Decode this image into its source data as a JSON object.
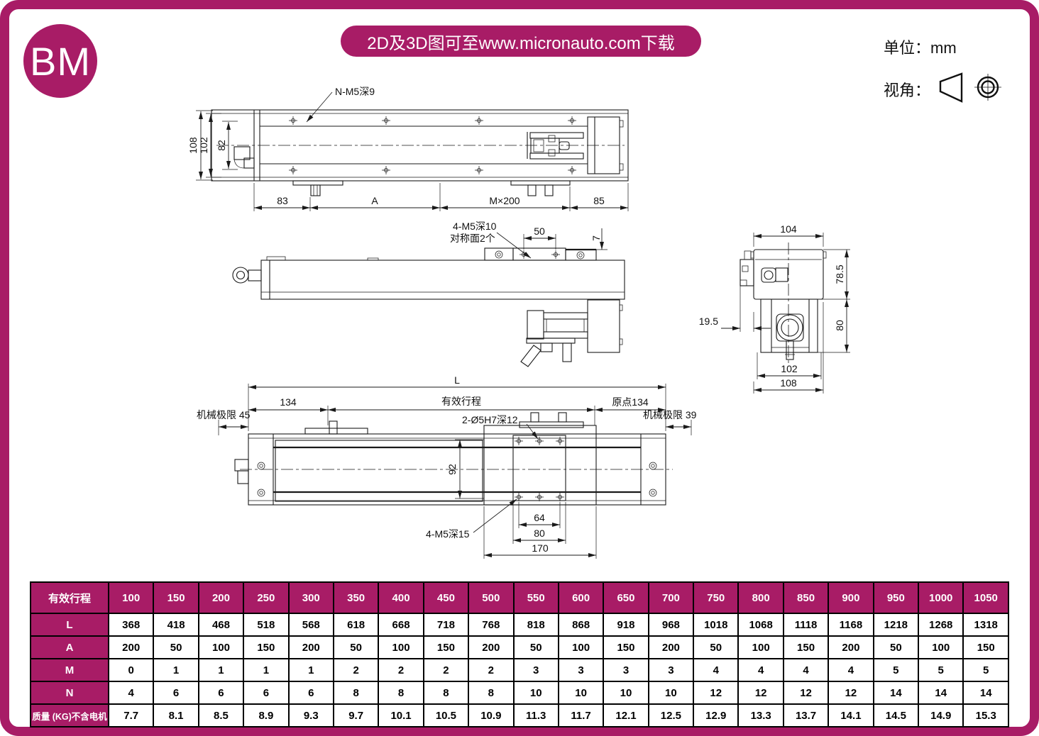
{
  "page": {
    "logo": "BM",
    "banner": "2D及3D图可至www.micronauto.com下载",
    "unit": "单位：mm",
    "view": "视角：",
    "accent": "#a81c66"
  },
  "d1": {
    "note": "N-M5深9",
    "h108": "108",
    "h102": "102",
    "h82": "82",
    "w83": "83",
    "wA": "A",
    "wM": "M×200",
    "w85": "85"
  },
  "d2": {
    "note1": "4-M5深10",
    "note2": "对称面2个",
    "w50": "50",
    "h7": "7"
  },
  "d3": {
    "L": "L",
    "w134": "134",
    "stroke": "有效行程",
    "origin": "原点134",
    "limL": "机械极限 45",
    "limR": "机械极限 39",
    "hole": "2-Ø5H7深12",
    "h92": "92",
    "thread": "4-M5深15",
    "w64": "64",
    "w80": "80",
    "w170": "170"
  },
  "d4": {
    "w104": "104",
    "h78": "78.5",
    "h80": "80",
    "w19": "19.5",
    "w102": "102",
    "w108": "108"
  },
  "table": {
    "header": "有效行程",
    "strokes": [
      "100",
      "150",
      "200",
      "250",
      "300",
      "350",
      "400",
      "450",
      "500",
      "550",
      "600",
      "650",
      "700",
      "750",
      "800",
      "850",
      "900",
      "950",
      "1000",
      "1050"
    ],
    "rows": [
      {
        "label": "L",
        "values": [
          "368",
          "418",
          "468",
          "518",
          "568",
          "618",
          "668",
          "718",
          "768",
          "818",
          "868",
          "918",
          "968",
          "1018",
          "1068",
          "1118",
          "1168",
          "1218",
          "1268",
          "1318"
        ]
      },
      {
        "label": "A",
        "values": [
          "200",
          "50",
          "100",
          "150",
          "200",
          "50",
          "100",
          "150",
          "200",
          "50",
          "100",
          "150",
          "200",
          "50",
          "100",
          "150",
          "200",
          "50",
          "100",
          "150"
        ]
      },
      {
        "label": "M",
        "values": [
          "0",
          "1",
          "1",
          "1",
          "1",
          "2",
          "2",
          "2",
          "2",
          "3",
          "3",
          "3",
          "3",
          "4",
          "4",
          "4",
          "4",
          "5",
          "5",
          "5"
        ]
      },
      {
        "label": "N",
        "values": [
          "4",
          "6",
          "6",
          "6",
          "6",
          "8",
          "8",
          "8",
          "8",
          "10",
          "10",
          "10",
          "10",
          "12",
          "12",
          "12",
          "12",
          "14",
          "14",
          "14"
        ]
      },
      {
        "label": "质量 (KG)不含电机",
        "values": [
          "7.7",
          "8.1",
          "8.5",
          "8.9",
          "9.3",
          "9.7",
          "10.1",
          "10.5",
          "10.9",
          "11.3",
          "11.7",
          "12.1",
          "12.5",
          "12.9",
          "13.3",
          "13.7",
          "14.1",
          "14.5",
          "14.9",
          "15.3"
        ]
      }
    ]
  }
}
